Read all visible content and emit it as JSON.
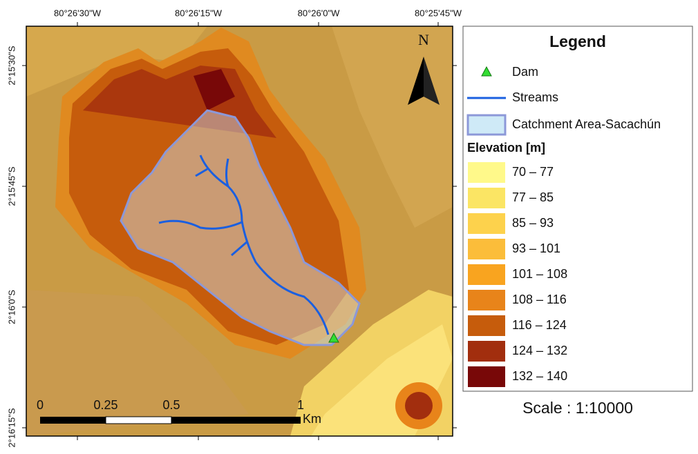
{
  "map": {
    "top_coords": [
      "80°26'30\"W",
      "80°26'15\"W",
      "80°26'0\"W",
      "80°25'45\"W"
    ],
    "left_coords": [
      "2°15'30\"S",
      "2°15'45\"S",
      "2°16'0\"S",
      "2°16'15\"S"
    ],
    "north": "N",
    "scale_bar": {
      "labels": [
        "0",
        "0.25",
        "0.5",
        "1"
      ],
      "unit": "Km"
    }
  },
  "legend": {
    "title": "Legend",
    "items": [
      "Dam",
      "Streams",
      "Catchment Area-Sacachún"
    ],
    "elevation_title": "Elevation [m]",
    "classes": [
      {
        "label": "70 – 77",
        "color": "#fff98a"
      },
      {
        "label": "77 – 85",
        "color": "#fbe564"
      },
      {
        "label": "85 – 93",
        "color": "#fdd24c"
      },
      {
        "label": "93 – 101",
        "color": "#fbbd3a"
      },
      {
        "label": "101 – 108",
        "color": "#f9a41f"
      },
      {
        "label": "108 – 116",
        "color": "#e8841a"
      },
      {
        "label": "116 – 124",
        "color": "#c65c0c"
      },
      {
        "label": "124 – 132",
        "color": "#a22e0e"
      },
      {
        "label": "132 – 140",
        "color": "#780808"
      }
    ],
    "scale": "Scale : 1:10000"
  }
}
